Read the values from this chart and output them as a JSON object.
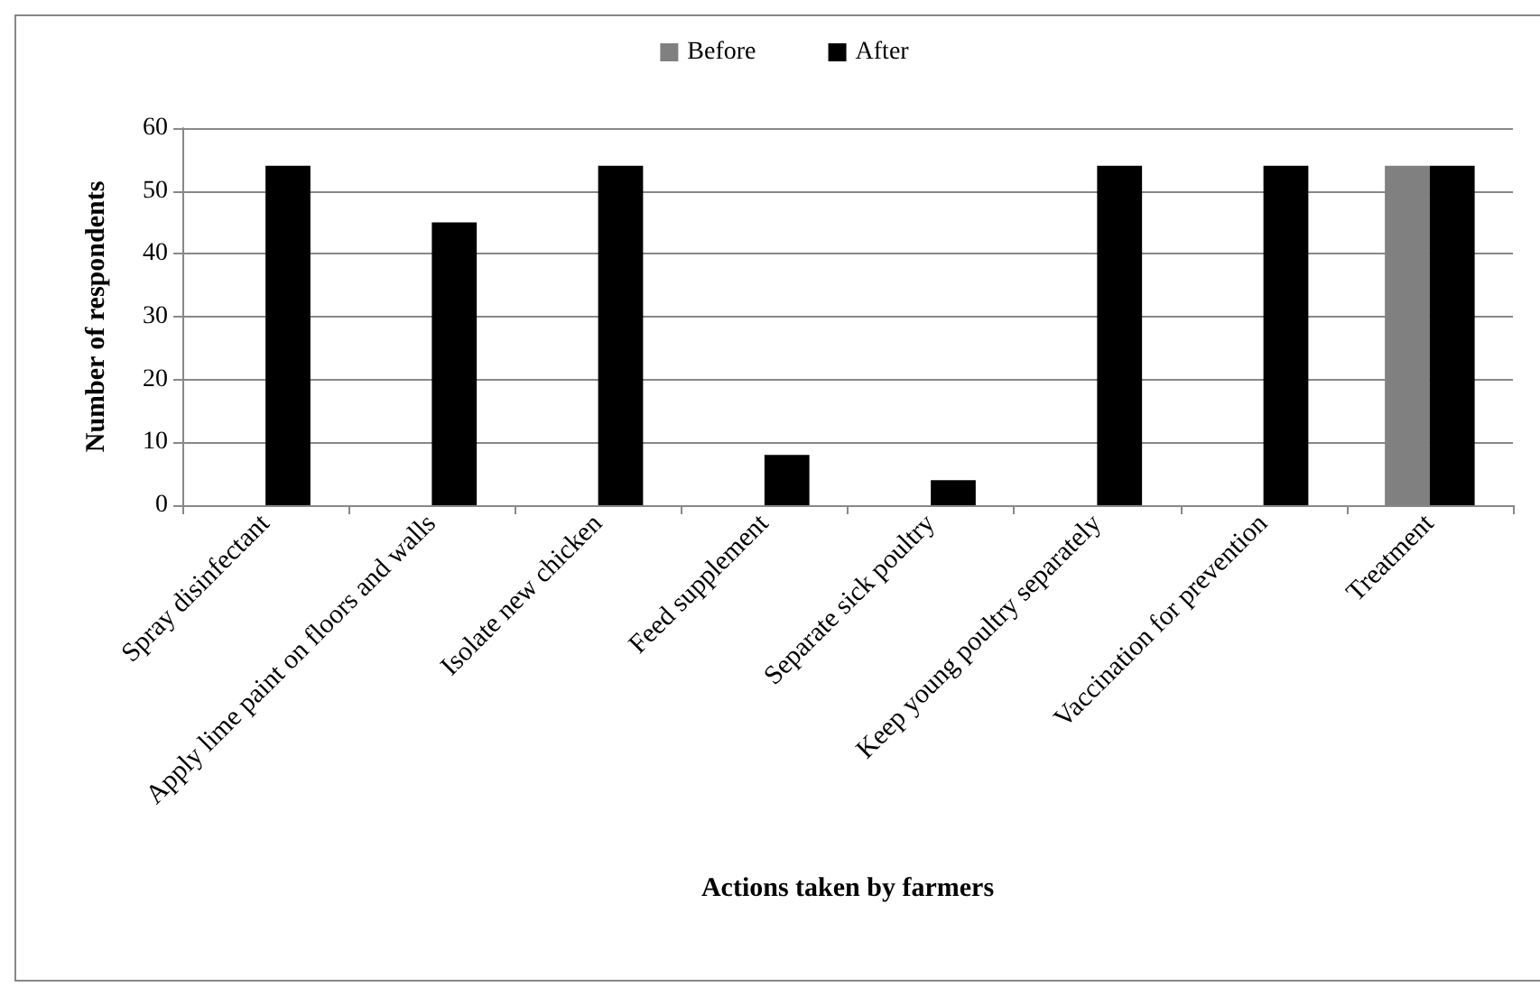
{
  "chart_data": {
    "type": "bar",
    "xlabel": "Actions taken by farmers",
    "ylabel": "Number of respondents",
    "categories": [
      "Spray disinfectant",
      "Apply lime paint on floors and walls",
      "Isolate new chicken",
      "Feed supplement",
      "Separate sick poultry",
      "Keep young poultry separately",
      "Vaccination for prevention",
      "Treatment"
    ],
    "series": [
      {
        "name": "Before",
        "color": "#808080",
        "values": [
          0,
          0,
          0,
          0,
          0,
          0,
          0,
          54
        ]
      },
      {
        "name": "After",
        "color": "#000000",
        "values": [
          54,
          45,
          54,
          8,
          4,
          54,
          54,
          54
        ]
      }
    ],
    "ylim": [
      0,
      60
    ],
    "yticks": [
      0,
      10,
      20,
      30,
      40,
      50,
      60
    ],
    "grid": "y",
    "legend": "top"
  }
}
